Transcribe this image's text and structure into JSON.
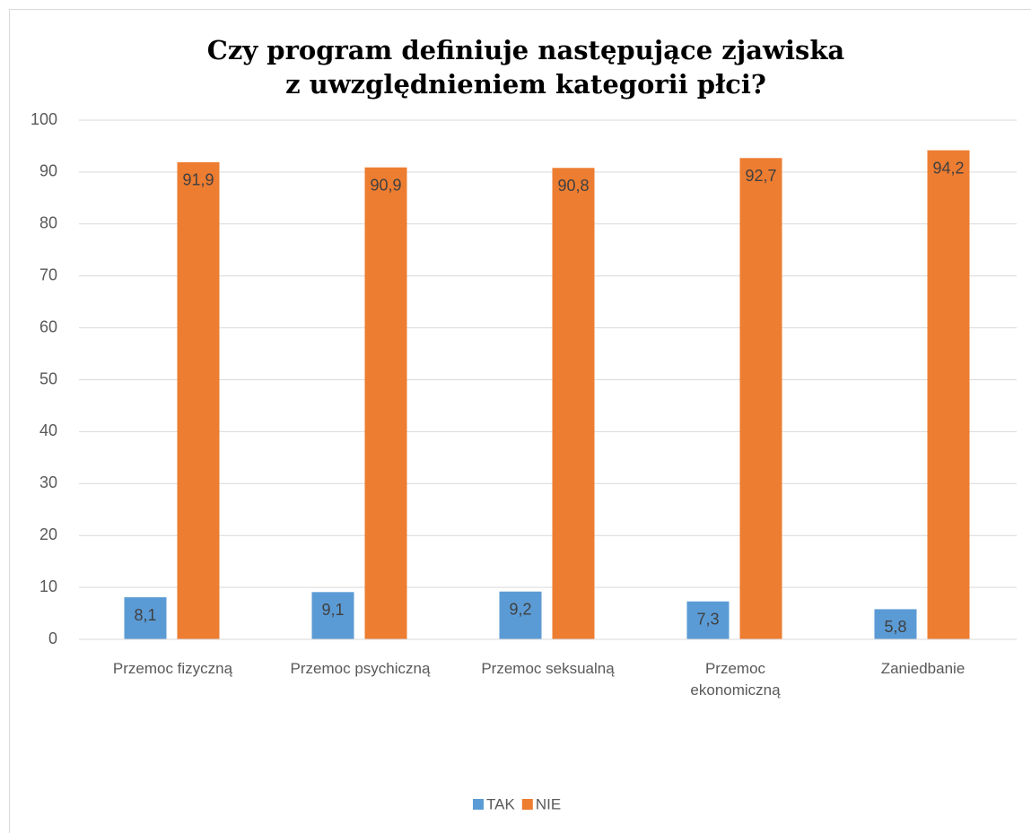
{
  "chart_data": {
    "type": "bar",
    "title": [
      "Czy program definiuje następujące zjawiska",
      "z uwzględnieniem kategorii płci?"
    ],
    "categories": [
      "Przemoc fizyczną",
      "Przemoc psychiczną",
      "Przemoc seksualną",
      "Przemoc ekonomiczną",
      "Zaniedbanie"
    ],
    "series": [
      {
        "name": "TAK",
        "color": "#5b9bd5",
        "values": [
          8.1,
          9.1,
          9.2,
          7.3,
          5.8
        ],
        "value_labels": [
          "8,1",
          "9,1",
          "9,2",
          "7,3",
          "5,8"
        ]
      },
      {
        "name": "NIE",
        "color": "#ed7d31",
        "values": [
          91.9,
          90.9,
          90.8,
          92.7,
          94.2
        ],
        "value_labels": [
          "91,9",
          "90,9",
          "90,8",
          "92,7",
          "94,2"
        ]
      }
    ],
    "ylim": [
      0,
      100
    ],
    "yticks": [
      0,
      10,
      20,
      30,
      40,
      50,
      60,
      70,
      80,
      90,
      100
    ],
    "grid": true,
    "legend": "bottom"
  }
}
